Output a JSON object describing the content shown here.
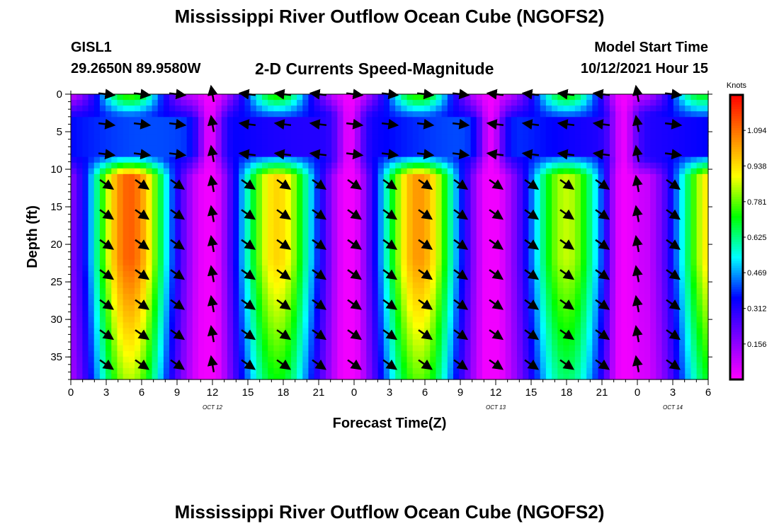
{
  "header": {
    "title": "Mississippi River Outflow Ocean Cube (NGOFS2)",
    "station": "GISL1",
    "coords": "29.2650N  89.9580W",
    "subtitle": "2-D Currents Speed-Magnitude",
    "start_label": "Model Start Time",
    "start_time": "10/12/2021 Hour 15"
  },
  "footer": {
    "title": "Mississippi River Outflow Ocean Cube (NGOFS2)"
  },
  "chart_data": {
    "type": "heatmap",
    "xlabel": "Forecast Time(Z)",
    "ylabel": "Depth (ft)",
    "xlim": [
      0,
      54
    ],
    "ylim": [
      38,
      0
    ],
    "x_ticks": [
      0,
      3,
      6,
      9,
      12,
      15,
      18,
      21,
      24,
      27,
      30,
      33,
      36,
      39,
      42,
      45,
      48,
      51,
      54
    ],
    "x_tick_labels": [
      "0",
      "3",
      "6",
      "9",
      "12",
      "15",
      "18",
      "21",
      "0",
      "3",
      "6",
      "9",
      "12",
      "15",
      "18",
      "21",
      "0",
      "3",
      "6"
    ],
    "y_ticks": [
      0,
      5,
      10,
      15,
      20,
      25,
      30,
      35
    ],
    "y_tick_labels": [
      "0",
      "5",
      "10",
      "15",
      "20",
      "25",
      "30",
      "35"
    ],
    "date_labels": [
      {
        "x": 12,
        "text": "OCT 12"
      },
      {
        "x": 36,
        "text": "OCT 13"
      },
      {
        "x": 51,
        "text": "OCT 14"
      }
    ],
    "colorbar": {
      "title": "Knots",
      "min": 0.0,
      "max": 1.25,
      "ticks": [
        1.094,
        0.938,
        0.781,
        0.625,
        0.469,
        0.312,
        0.156
      ],
      "tick_labels": [
        "1.094",
        "0.938",
        "0.781",
        "0.625",
        "0.469",
        "0.312",
        "0.156"
      ],
      "colors": [
        "#ff00ff",
        "#8000ff",
        "#0000ff",
        "#00ffff",
        "#00ff00",
        "#ffff00",
        "#ff8000",
        "#ff0000"
      ]
    },
    "speed_model": {
      "surface_peaks": [
        5,
        17.5,
        29.5,
        42,
        53.5
      ],
      "surface_amp": [
        0.78,
        0.76,
        0.78,
        0.74,
        0.72
      ],
      "deep_peaks": [
        5,
        17.5,
        29.5,
        42,
        54.5
      ],
      "deep_amp": [
        1.12,
        0.95,
        1.04,
        0.85,
        0.95
      ],
      "slack_times": [
        11.8,
        23.6,
        35.6,
        46.8
      ],
      "mid_layer_speed": 0.36,
      "mid_layer_depths": [
        3,
        8
      ]
    },
    "arrow_times": [
      0,
      3,
      6,
      9,
      12,
      15,
      18,
      21,
      24,
      27,
      30,
      33,
      36,
      39,
      42,
      45,
      48,
      51,
      54
    ],
    "arrow_depths": [
      0,
      4,
      8,
      12,
      16,
      20,
      24,
      28,
      32,
      36
    ]
  }
}
